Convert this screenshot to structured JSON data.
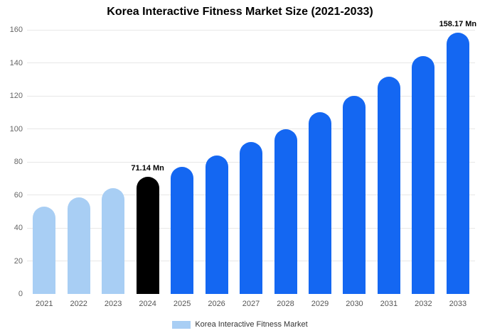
{
  "title": "Korea Interactive Fitness Market Size (2021-2033)",
  "legend": {
    "label": "Korea Interactive Fitness Market",
    "swatch_color": "#a8cef4"
  },
  "colors": {
    "historical_bar": "#a8cef4",
    "highlight_bar": "#000000",
    "forecast_bar": "#1467f2",
    "gridline": "#e7e7e7"
  },
  "chart_data": {
    "type": "bar",
    "title": "Korea Interactive Fitness Market Size (2021-2033)",
    "xlabel": "",
    "ylabel": "",
    "categories": [
      "2021",
      "2022",
      "2023",
      "2024",
      "2025",
      "2026",
      "2027",
      "2028",
      "2029",
      "2030",
      "2031",
      "2032",
      "2033"
    ],
    "values": [
      53,
      58.5,
      64,
      71.14,
      77,
      84,
      92,
      100,
      110,
      120,
      131.5,
      144,
      158.17
    ],
    "bar_colors": [
      "#a8cef4",
      "#a8cef4",
      "#a8cef4",
      "#000000",
      "#1467f2",
      "#1467f2",
      "#1467f2",
      "#1467f2",
      "#1467f2",
      "#1467f2",
      "#1467f2",
      "#1467f2",
      "#1467f2"
    ],
    "annotations": [
      {
        "category": "2024",
        "text": "71.14 Mn"
      },
      {
        "category": "2033",
        "text": "158.17 Mn"
      }
    ],
    "ylim": [
      0,
      160
    ],
    "yticks": [
      0,
      20,
      40,
      60,
      80,
      100,
      120,
      140,
      160
    ],
    "grid": true,
    "legend_position": "bottom",
    "legend_entries": [
      "Korea Interactive Fitness Market"
    ]
  }
}
